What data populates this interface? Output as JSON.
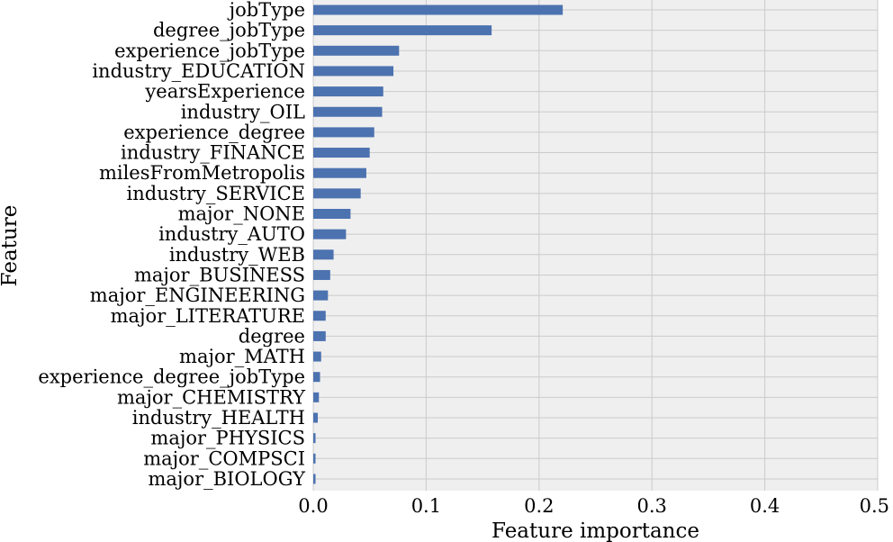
{
  "chart_data": {
    "type": "bar",
    "orientation": "horizontal",
    "title": "",
    "xlabel": "Feature importance",
    "ylabel": "Feature",
    "xlim": [
      0,
      0.5
    ],
    "xticks": [
      0.0,
      0.1,
      0.2,
      0.3,
      0.4,
      0.5
    ],
    "xtick_labels": [
      "0.0",
      "0.1",
      "0.2",
      "0.3",
      "0.4",
      "0.5"
    ],
    "grid": true,
    "legend": "none",
    "categories": [
      "jobType",
      "degree_jobType",
      "experience_jobType",
      "industry_EDUCATION",
      "yearsExperience",
      "industry_OIL",
      "experience_degree",
      "industry_FINANCE",
      "milesFromMetropolis",
      "industry_SERVICE",
      "major_NONE",
      "industry_AUTO",
      "industry_WEB",
      "major_BUSINESS",
      "major_ENGINEERING",
      "major_LITERATURE",
      "degree",
      "major_MATH",
      "experience_degree_jobType",
      "major_CHEMISTRY",
      "industry_HEALTH",
      "major_PHYSICS",
      "major_COMPSCI",
      "major_BIOLOGY"
    ],
    "values": [
      0.221,
      0.158,
      0.076,
      0.071,
      0.062,
      0.061,
      0.054,
      0.05,
      0.047,
      0.042,
      0.033,
      0.029,
      0.018,
      0.015,
      0.013,
      0.011,
      0.011,
      0.007,
      0.006,
      0.005,
      0.004,
      0.002,
      0.002,
      0.002
    ],
    "colors": {
      "bar": "#4c72b0",
      "plot_background": "#efefef",
      "grid": "#cbcbcb",
      "page_background": "#ffffff"
    }
  }
}
